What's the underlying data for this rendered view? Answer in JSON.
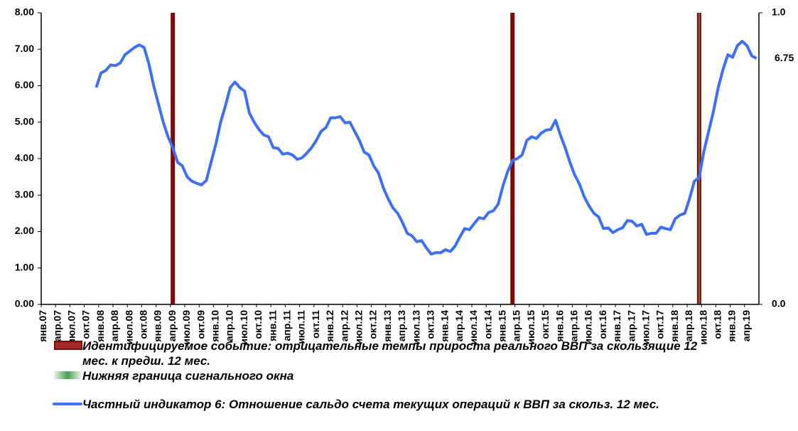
{
  "chart_data": {
    "type": "line",
    "categories": [
      "янв.07",
      null,
      null,
      "апр.07",
      null,
      null,
      "июл.07",
      null,
      null,
      "окт.07",
      null,
      null,
      "янв.08",
      null,
      null,
      "апр.08",
      null,
      null,
      "июл.08",
      null,
      null,
      "окт.08",
      null,
      null,
      "янв.09",
      null,
      null,
      "апр.09",
      null,
      null,
      "июл.09",
      null,
      null,
      "окт.09",
      null,
      null,
      "янв.10",
      null,
      null,
      "апр.10",
      null,
      null,
      "июл.10",
      null,
      null,
      "окт.10",
      null,
      null,
      "янв.11",
      null,
      null,
      "апр.11",
      null,
      null,
      "июл.11",
      null,
      null,
      "окт.11",
      null,
      null,
      "янв.12",
      null,
      null,
      "апр.12",
      null,
      null,
      "июл.12",
      null,
      null,
      "окт.12",
      null,
      null,
      "янв.13",
      null,
      null,
      "апр.13",
      null,
      null,
      "июл.13",
      null,
      null,
      "окт.13",
      null,
      null,
      "янв.14",
      null,
      null,
      "апр.14",
      null,
      null,
      "июл.14",
      null,
      null,
      "окт.14",
      null,
      null,
      "янв.15",
      null,
      null,
      "апр.15",
      null,
      null,
      "июл.15",
      null,
      null,
      "окт.15",
      null,
      null,
      "янв.16",
      null,
      null,
      "апр.16",
      null,
      null,
      "июл.16",
      null,
      null,
      "окт.16",
      null,
      null,
      "янв.17",
      null,
      null,
      "апр.17",
      null,
      null,
      "июл.17",
      null,
      null,
      "окт.17",
      null,
      null,
      "янв.18",
      null,
      null,
      "апр.18",
      null,
      null,
      "июл.18",
      null,
      null,
      "окт.18",
      null,
      null,
      "янв.19",
      null,
      null,
      "апр.19",
      null,
      null
    ],
    "series": [
      {
        "name": "Частный индикатор 6: Отношение сальдо счета текущих операций к ВВП за скольз. 12 мес.",
        "type": "line",
        "color": "#3f6ff5",
        "values": [
          null,
          null,
          null,
          null,
          null,
          null,
          null,
          null,
          null,
          null,
          null,
          5.95,
          6.35,
          6.42,
          6.57,
          6.55,
          6.62,
          6.85,
          6.95,
          7.05,
          7.12,
          7.05,
          6.6,
          6,
          5.5,
          5,
          4.6,
          4.3,
          3.9,
          3.8,
          3.5,
          3.38,
          3.32,
          3.28,
          3.4,
          3.9,
          4.4,
          5,
          5.45,
          5.95,
          6.1,
          5.95,
          5.85,
          5.25,
          5,
          4.8,
          4.65,
          4.6,
          4.3,
          4.28,
          4.12,
          4.15,
          4.1,
          3.98,
          4.02,
          4.15,
          4.3,
          4.5,
          4.75,
          4.85,
          5.12,
          5.12,
          5.15,
          4.98,
          5,
          4.75,
          4.5,
          4.18,
          4.1,
          3.8,
          3.6,
          3.2,
          2.9,
          2.65,
          2.5,
          2.25,
          1.95,
          1.88,
          1.72,
          1.75,
          1.55,
          1.38,
          1.42,
          1.42,
          1.5,
          1.45,
          1.6,
          1.85,
          2.08,
          2.05,
          2.22,
          2.38,
          2.35,
          2.52,
          2.57,
          2.75,
          3.25,
          3.65,
          3.95,
          4,
          4.1,
          4.5,
          4.6,
          4.55,
          4.7,
          4.78,
          4.8,
          5.05,
          4.65,
          4.3,
          3.9,
          3.55,
          3.3,
          2.95,
          2.7,
          2.5,
          2.4,
          2.08,
          2.1,
          1.97,
          2.05,
          2.1,
          2.3,
          2.28,
          2.15,
          2.2,
          1.92,
          1.95,
          1.95,
          2.12,
          2.08,
          2.05,
          2.35,
          2.45,
          2.5,
          2.9,
          3.38,
          3.48,
          4.2,
          4.75,
          5.3,
          5.95,
          6.45,
          6.85,
          6.78,
          7.1,
          7.22,
          7.1,
          6.82,
          6.75
        ]
      },
      {
        "name": "Идентифицируемое событие: отрицательные темпы прироста реального ВВП за скользящие 12 мес. к предш. 12 мес.",
        "type": "bar",
        "axis": "y2",
        "color": "#7f0a0a",
        "values": [
          null,
          null,
          null,
          null,
          null,
          null,
          null,
          null,
          null,
          null,
          null,
          null,
          null,
          null,
          null,
          null,
          null,
          null,
          null,
          null,
          null,
          null,
          null,
          null,
          null,
          null,
          null,
          1,
          null,
          null,
          null,
          null,
          null,
          null,
          null,
          null,
          null,
          null,
          null,
          null,
          null,
          null,
          null,
          null,
          null,
          null,
          null,
          null,
          null,
          null,
          null,
          null,
          null,
          null,
          null,
          null,
          null,
          null,
          null,
          null,
          null,
          null,
          null,
          null,
          null,
          null,
          null,
          null,
          null,
          null,
          null,
          null,
          null,
          null,
          null,
          null,
          null,
          null,
          null,
          null,
          null,
          null,
          null,
          null,
          null,
          null,
          null,
          null,
          null,
          null,
          null,
          null,
          null,
          null,
          null,
          null,
          null,
          null,
          1,
          null,
          null,
          null,
          null,
          null,
          null,
          null,
          null,
          null,
          null,
          null,
          null,
          null,
          null,
          null,
          null,
          null,
          null,
          null,
          null,
          null,
          null,
          null,
          null,
          null,
          null,
          null,
          null,
          null,
          null,
          null,
          null,
          null,
          null,
          null,
          null,
          null,
          null,
          1,
          null,
          null,
          null,
          null,
          null,
          null,
          null,
          null,
          null,
          null,
          null,
          null
        ]
      },
      {
        "name": "Нижняя граница сигнального окна",
        "type": "bar",
        "axis": "y2",
        "color": "#4f9a5a",
        "values": [
          null,
          null,
          null,
          null,
          null,
          null,
          null,
          null,
          null,
          null,
          null,
          null,
          null,
          null,
          null,
          null,
          null,
          null,
          null,
          null,
          null,
          null,
          null,
          null,
          null,
          null,
          null,
          null,
          null,
          null,
          null,
          null,
          null,
          null,
          null,
          null,
          null,
          null,
          null,
          null,
          null,
          null,
          null,
          null,
          null,
          null,
          null,
          null,
          null,
          null,
          null,
          null,
          null,
          null,
          null,
          null,
          null,
          null,
          null,
          null,
          null,
          null,
          null,
          null,
          null,
          null,
          null,
          null,
          null,
          null,
          null,
          null,
          null,
          null,
          null,
          null,
          null,
          null,
          null,
          null,
          null,
          null,
          null,
          null,
          null,
          null,
          null,
          null,
          null,
          null,
          null,
          null,
          null,
          null,
          null,
          null,
          null,
          null,
          null,
          null,
          null,
          null,
          null,
          null,
          null,
          null,
          null,
          null,
          null,
          null,
          null,
          null,
          null,
          null,
          null,
          null,
          null,
          null,
          null,
          null,
          null,
          null,
          null,
          null,
          null,
          null,
          null,
          null,
          null,
          null,
          null,
          null,
          null,
          null,
          null,
          null,
          null,
          1,
          null,
          null,
          null,
          null,
          null,
          null,
          null,
          null,
          null,
          null,
          null,
          null
        ]
      }
    ],
    "ylim": [
      0,
      8
    ],
    "yticks": [
      {
        "value": 0,
        "label": "0.00"
      },
      {
        "value": 1,
        "label": "1.00"
      },
      {
        "value": 2,
        "label": "2.00"
      },
      {
        "value": 3,
        "label": "3.00"
      },
      {
        "value": 4,
        "label": "4.00"
      },
      {
        "value": 5,
        "label": "5.00"
      },
      {
        "value": 6,
        "label": "6.00"
      },
      {
        "value": 7,
        "label": "7.00"
      },
      {
        "value": 8,
        "label": "8.00"
      }
    ],
    "y2lim": [
      0,
      1
    ],
    "y2ticks": [
      {
        "value": 0,
        "label": "0.0"
      },
      {
        "value": 1,
        "label": "1.0"
      }
    ],
    "grid": false
  }
}
